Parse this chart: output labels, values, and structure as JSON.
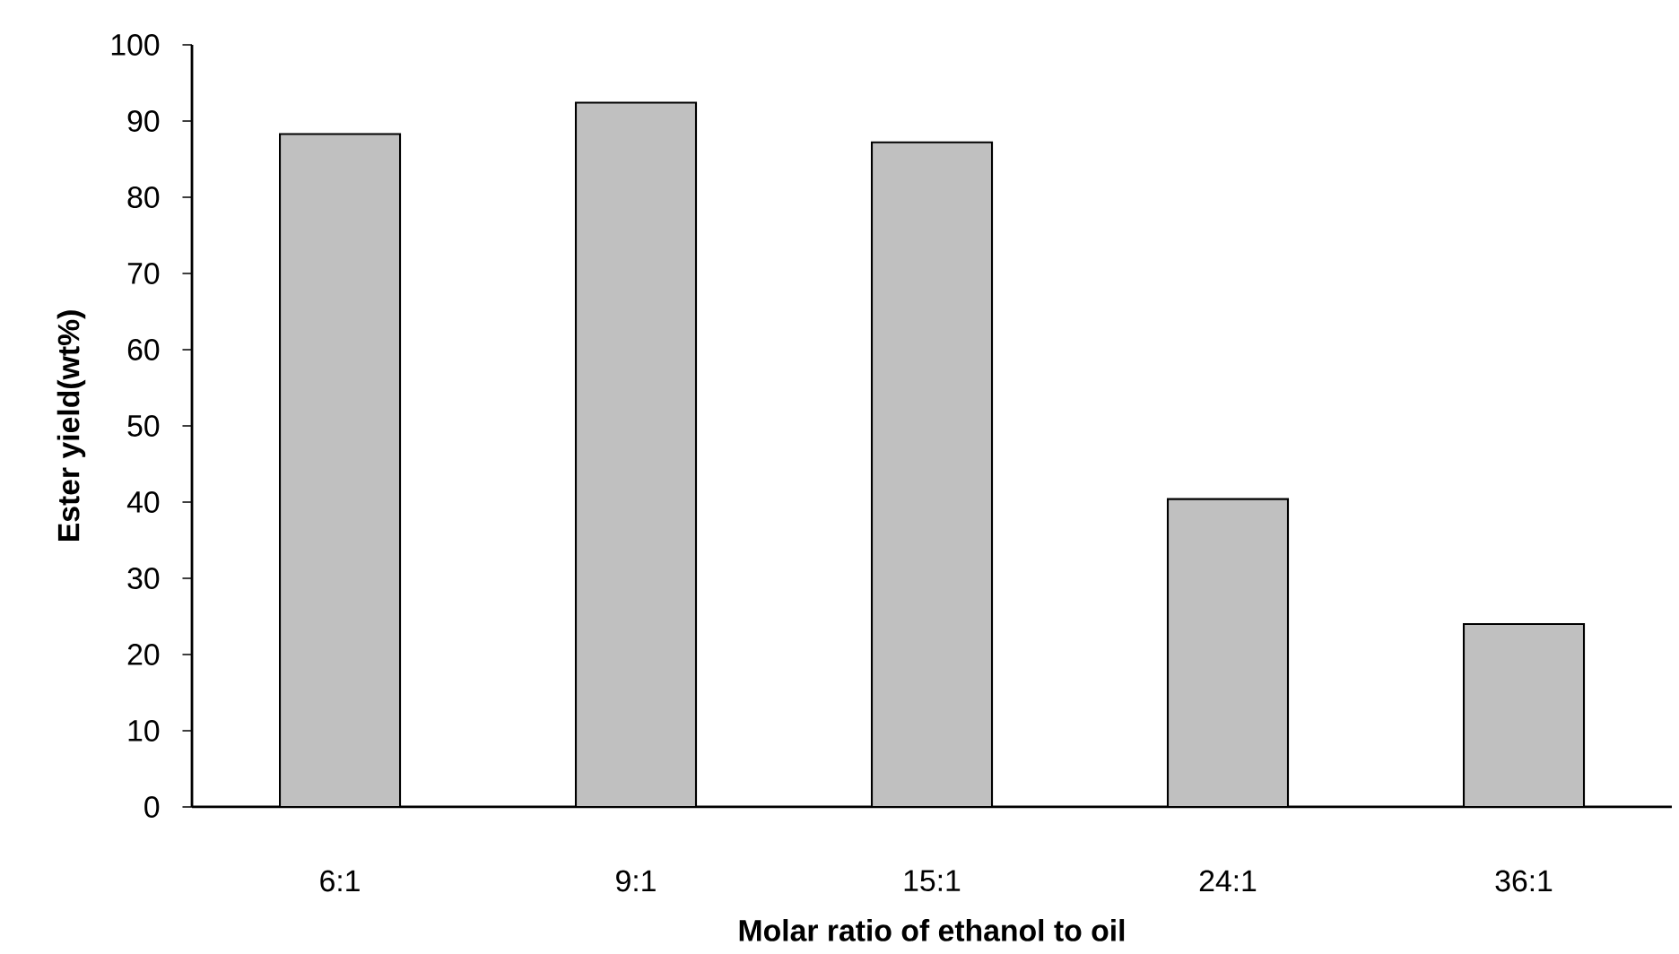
{
  "chart_data": {
    "type": "bar",
    "xlabel": "Molar ratio of ethanol to oil",
    "ylabel": "Ester yield(wt%)",
    "categories": [
      "6:1",
      "9:1",
      "15:1",
      "24:1",
      "36:1"
    ],
    "values": [
      88.3,
      92.4,
      87.2,
      40.4,
      24.0
    ],
    "color": "#c0c0c0",
    "ylim": [
      0,
      100
    ],
    "yticks": [
      0,
      10,
      20,
      30,
      40,
      50,
      60,
      70,
      80,
      90,
      100
    ],
    "grid": false
  }
}
